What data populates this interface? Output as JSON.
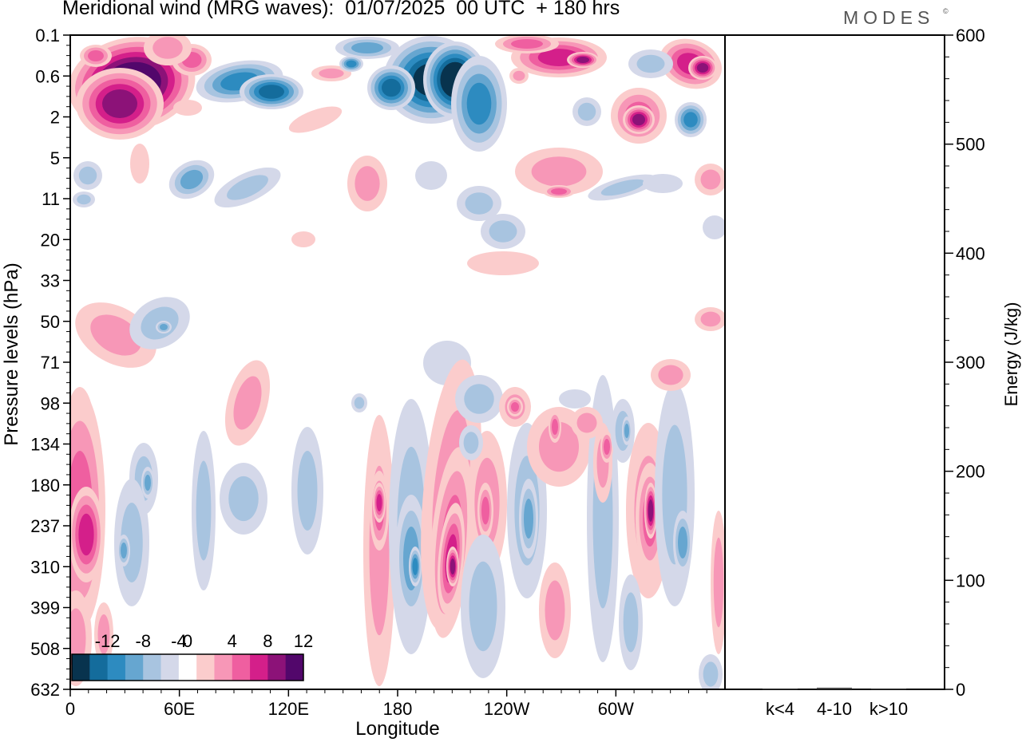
{
  "title": "Meridional wind (MRG waves):  01/07/2025  00 UTC  + 180 hrs",
  "logo": "MODES",
  "logo_mark": "©",
  "chart_data": [
    {
      "type": "heatmap",
      "title": "Meridional wind (MRG waves):  01/07/2025  00 UTC  + 180 hrs",
      "xlabel": "Longitude",
      "ylabel": "Pressure levels (hPa)",
      "x_ticks": [
        "0",
        "60E",
        "120E",
        "180",
        "120W",
        "60W"
      ],
      "x_range_deg_east": [
        0,
        360
      ],
      "x_tick_positions_deg_east": [
        0,
        60,
        120,
        180,
        240,
        300
      ],
      "y_ticks": [
        "0.1",
        "0.6",
        "2",
        "5",
        "11",
        "20",
        "33",
        "50",
        "71",
        "98",
        "134",
        "180",
        "237",
        "310",
        "399",
        "508",
        "632"
      ],
      "y_axis_inverted": true,
      "colorbar": {
        "tick_labels": [
          "-12",
          "-8",
          "-4",
          "0",
          "4",
          "8",
          "12"
        ],
        "levels": [
          -14,
          -12,
          -10,
          -8,
          -6,
          -4,
          -2,
          2,
          4,
          6,
          8,
          10,
          12,
          14
        ],
        "colors": [
          "#08334e",
          "#146c9c",
          "#2d8bc0",
          "#66a6d0",
          "#a8c4e0",
          "#d4d8e9",
          "#ffffff",
          "#fbcccc",
          "#f797b7",
          "#ef5fa0",
          "#d41f8a",
          "#8c1278",
          "#52076b"
        ]
      },
      "regions": [
        {
          "lon": 33,
          "p_level": 1.0,
          "value": 14,
          "note": "strongest positive maximum"
        },
        {
          "lon": 200,
          "p_level": 0.5,
          "value": -14,
          "note": "strongest negative minimum"
        },
        {
          "lon": 310,
          "p_level": 245,
          "value": 12
        },
        {
          "lon": 200,
          "p_level": 310,
          "value": 10
        },
        {
          "lon": 170,
          "p_level": 250,
          "value": 10
        },
        {
          "lon": 12,
          "p_level": 240,
          "value": 8
        },
        {
          "lon": 135,
          "p_level": 0.7,
          "value": -8
        },
        {
          "lon": 248,
          "p_level": 250,
          "value": -6
        },
        {
          "lon": 183,
          "p_level": 300,
          "value": -6
        }
      ]
    },
    {
      "type": "bar",
      "categories": [
        "k<4",
        "4-10",
        "k>10"
      ],
      "values": [
        0.5,
        1.5,
        0.5
      ],
      "ylabel": "Energy (J/kg)",
      "y_ticks": [
        "0",
        "100",
        "200",
        "300",
        "400",
        "500",
        "600"
      ],
      "ylim": [
        0,
        600
      ]
    }
  ]
}
